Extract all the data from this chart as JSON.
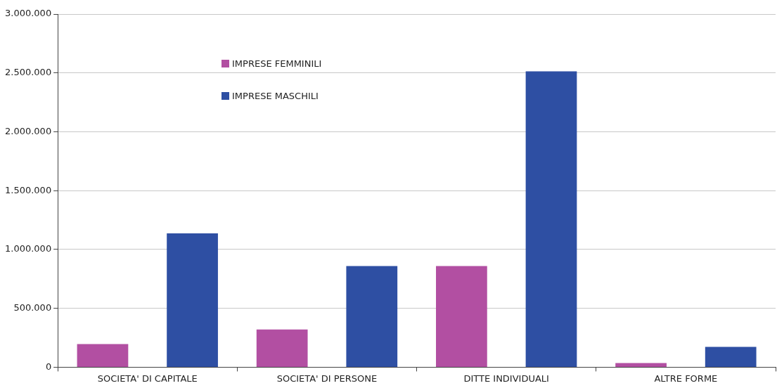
{
  "chart_data": {
    "type": "bar",
    "categories": [
      "SOCIETA' DI CAPITALE",
      "SOCIETA' DI PERSONE",
      "DITTE INDIVIDUALI",
      "ALTRE FORME"
    ],
    "series": [
      {
        "name": "IMPRESE FEMMINILI",
        "color": "#b24fa2",
        "values": [
          196000,
          320000,
          860000,
          35000
        ]
      },
      {
        "name": "IMPRESE MASCHILI",
        "color": "#2e4fa3",
        "values": [
          1137000,
          860000,
          2514000,
          172000
        ]
      }
    ],
    "ylim": [
      0,
      3000000
    ],
    "yticks": [
      {
        "value": 0,
        "label": "0"
      },
      {
        "value": 500000,
        "label": "500.000"
      },
      {
        "value": 1000000,
        "label": "1.000.000"
      },
      {
        "value": 1500000,
        "label": "1.500.000"
      },
      {
        "value": 2000000,
        "label": "2.000.000"
      },
      {
        "value": 2500000,
        "label": "2.500.000"
      },
      {
        "value": 3000000,
        "label": "3.000.000"
      }
    ],
    "grid": "y",
    "legend": "top left"
  }
}
